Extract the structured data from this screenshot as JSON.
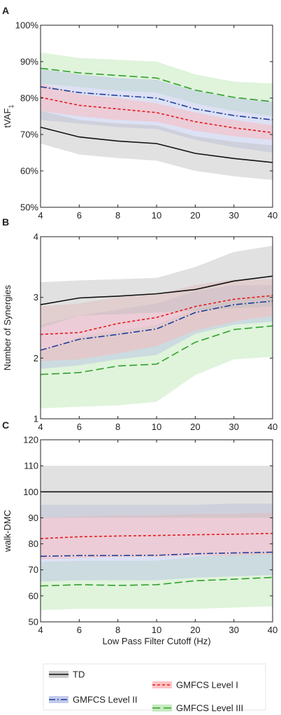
{
  "colors": {
    "TD": "#111111",
    "GMFCS Level I": "#e41a1c",
    "GMFCS Level II": "#1f3f99",
    "GMFCS Level III": "#33a02c",
    "band_TD": "#bdbdbd",
    "band_GMFCS Level I": "#ffb3b3",
    "band_GMFCS Level II": "#b3bde6",
    "band_GMFCS Level III": "#b8e6b0"
  },
  "xlabel": "Low Pass Filter Cutoff (Hz)",
  "legend": {
    "placement": "bottom",
    "entries": [
      "TD",
      "GMFCS Level I",
      "GMFCS Level II",
      "GMFCS Level III"
    ]
  },
  "chart_data": [
    {
      "panel_label": "A",
      "type": "line",
      "categories": [
        "4",
        "6",
        "8",
        "10",
        "20",
        "30",
        "40"
      ],
      "ylabel_main": "tVAF",
      "ylabel_sub": "1",
      "ylim": [
        50,
        100
      ],
      "yticks": [
        50,
        60,
        70,
        80,
        90,
        100
      ],
      "ytick_labels": [
        "50%",
        "60%",
        "70%",
        "80%",
        "90%",
        "100%"
      ],
      "grid": false,
      "series": [
        {
          "name": "TD",
          "values": [
            72,
            69.3,
            68.2,
            67.5,
            64.8,
            63.4,
            62.3
          ],
          "lower": [
            67.5,
            64.5,
            63.5,
            62.8,
            60,
            58.5,
            57.5
          ],
          "upper": [
            76.5,
            74,
            73,
            72.5,
            69.5,
            68,
            67
          ]
        },
        {
          "name": "GMFCS Level I",
          "values": [
            80.2,
            78,
            77,
            76,
            73.5,
            71.8,
            70.5
          ],
          "lower": [
            76.5,
            75,
            74,
            73.5,
            71,
            69.5,
            68.5
          ],
          "upper": [
            84,
            81,
            80,
            78.5,
            76,
            74,
            72.5
          ]
        },
        {
          "name": "GMFCS Level II",
          "values": [
            83.1,
            81.5,
            80.7,
            80,
            77,
            75.2,
            74
          ],
          "lower": [
            74,
            73,
            72,
            71.5,
            68.5,
            66.5,
            65
          ],
          "upper": [
            88,
            86.5,
            85.5,
            85,
            82,
            80,
            79
          ]
        },
        {
          "name": "GMFCS Level III",
          "values": [
            88.2,
            86.9,
            86.2,
            85.5,
            82.2,
            80.2,
            79
          ],
          "lower": [
            84,
            83,
            82,
            81.5,
            78.5,
            76.5,
            75
          ],
          "upper": [
            92.5,
            91,
            90.5,
            90,
            86.5,
            84.5,
            84
          ]
        }
      ]
    },
    {
      "panel_label": "B",
      "type": "line",
      "categories": [
        "4",
        "6",
        "8",
        "10",
        "20",
        "30",
        "40"
      ],
      "ylabel_main": "Number of Synergies",
      "ylabel_sub": "",
      "ylim": [
        1,
        4
      ],
      "yticks": [
        1,
        2,
        3,
        4
      ],
      "ytick_labels": [
        "1",
        "2",
        "3",
        "4"
      ],
      "grid": false,
      "series": [
        {
          "name": "TD",
          "values": [
            2.88,
            2.99,
            3.02,
            3.06,
            3.13,
            3.27,
            3.35
          ],
          "lower": [
            2.5,
            2.7,
            2.72,
            2.75,
            2.78,
            2.82,
            2.85
          ],
          "upper": [
            3.25,
            3.28,
            3.3,
            3.32,
            3.5,
            3.75,
            3.85
          ]
        },
        {
          "name": "GMFCS Level I",
          "values": [
            2.39,
            2.42,
            2.57,
            2.67,
            2.85,
            2.97,
            3.03
          ],
          "lower": [
            1.95,
            1.98,
            2.08,
            2.2,
            2.45,
            2.6,
            2.7
          ],
          "upper": [
            2.85,
            2.9,
            3.0,
            3.05,
            3.2,
            3.3,
            3.3
          ]
        },
        {
          "name": "GMFCS Level II",
          "values": [
            2.13,
            2.31,
            2.39,
            2.48,
            2.75,
            2.88,
            2.94
          ],
          "lower": [
            1.82,
            1.88,
            1.98,
            2.05,
            2.4,
            2.55,
            2.6
          ],
          "upper": [
            2.55,
            2.7,
            2.8,
            2.9,
            3.1,
            3.2,
            3.2
          ]
        },
        {
          "name": "GMFCS Level III",
          "values": [
            1.73,
            1.76,
            1.87,
            1.9,
            2.26,
            2.47,
            2.53
          ],
          "lower": [
            1.17,
            1.2,
            1.22,
            1.28,
            1.72,
            1.98,
            2.02
          ],
          "upper": [
            2.1,
            2.35,
            2.45,
            2.55,
            2.8,
            2.95,
            3.05
          ]
        }
      ]
    },
    {
      "panel_label": "C",
      "type": "line",
      "categories": [
        "4",
        "6",
        "8",
        "10",
        "20",
        "30",
        "40"
      ],
      "ylabel_main": "walk-DMC",
      "ylabel_sub": "",
      "ylim": [
        50,
        120
      ],
      "yticks": [
        50,
        60,
        70,
        80,
        90,
        100,
        110,
        120
      ],
      "ytick_labels": [
        "50",
        "60",
        "70",
        "80",
        "90",
        "100",
        "110",
        "120"
      ],
      "grid": false,
      "series": [
        {
          "name": "TD",
          "values": [
            100,
            100,
            100,
            100,
            100,
            100,
            100
          ],
          "lower": [
            90,
            90,
            90,
            90,
            90,
            90,
            90
          ],
          "upper": [
            110,
            110,
            110,
            110,
            110,
            110,
            110
          ]
        },
        {
          "name": "GMFCS Level I",
          "values": [
            82,
            82.7,
            83,
            83.2,
            83.5,
            83.7,
            84
          ],
          "lower": [
            74,
            74.5,
            75,
            75,
            75.5,
            75.5,
            76
          ],
          "upper": [
            90,
            90.5,
            91,
            91,
            91.5,
            91.5,
            92
          ]
        },
        {
          "name": "GMFCS Level II",
          "values": [
            75.2,
            75.5,
            75.5,
            75.6,
            76.2,
            76.5,
            76.8
          ],
          "lower": [
            65.5,
            66,
            66,
            66,
            67,
            67.5,
            68
          ],
          "upper": [
            95,
            95,
            95,
            95,
            95,
            95.5,
            95.5
          ]
        },
        {
          "name": "GMFCS Level III",
          "values": [
            63.8,
            64.3,
            64,
            64.3,
            65.8,
            66.4,
            67.1
          ],
          "lower": [
            54.5,
            55,
            55,
            55,
            55,
            55.5,
            56
          ],
          "upper": [
            73,
            73.5,
            73.5,
            73.5,
            75,
            76,
            77
          ]
        }
      ]
    }
  ]
}
